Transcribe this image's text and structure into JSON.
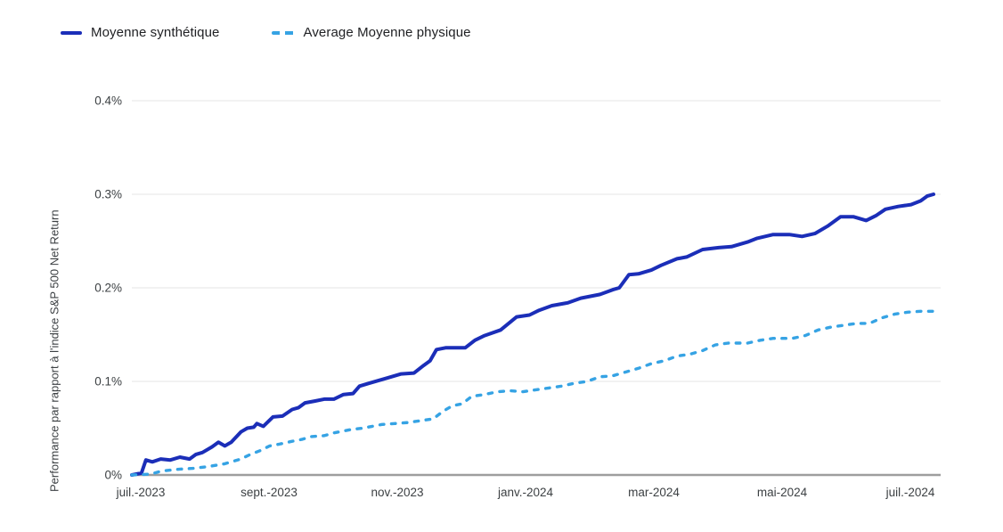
{
  "chart_data": {
    "type": "line",
    "title": "",
    "legend_position": "top-left",
    "grid": "horizontal",
    "colors": {
      "background": "#ffffff",
      "gridline": "#ebebeb",
      "axis_line": "#9e9e9e",
      "tick_text": "#3c4043",
      "legend_text": "#202124"
    },
    "x_axis": {
      "domain_months": [
        0,
        12.5
      ],
      "tick_positions_months": [
        0,
        2,
        4,
        6,
        8,
        10,
        12
      ],
      "tick_labels": [
        "juil.-2023",
        "sept.-2023",
        "nov.-2023",
        "janv.-2024",
        "mar-2024",
        "mai-2024",
        "juil.-2024"
      ]
    },
    "y_axis": {
      "label": "Performance par rapport à l'indice S&P 500 Net Return",
      "unit": "%",
      "range": [
        0,
        0.4
      ],
      "tick_values": [
        0,
        0.1,
        0.2,
        0.3,
        0.4
      ],
      "tick_labels": [
        "0%",
        "0.1%",
        "0.2%",
        "0.3%",
        "0.4%"
      ]
    },
    "series": [
      {
        "name": "Moyenne synthétique",
        "color": "#1b2eb8",
        "style": "solid",
        "points": [
          [
            0,
            0
          ],
          [
            0.15,
            0.002
          ],
          [
            0.22,
            0.016
          ],
          [
            0.32,
            0.014
          ],
          [
            0.45,
            0.017
          ],
          [
            0.6,
            0.016
          ],
          [
            0.75,
            0.019
          ],
          [
            0.9,
            0.017
          ],
          [
            1.0,
            0.022
          ],
          [
            1.1,
            0.024
          ],
          [
            1.25,
            0.03
          ],
          [
            1.35,
            0.035
          ],
          [
            1.45,
            0.031
          ],
          [
            1.55,
            0.035
          ],
          [
            1.7,
            0.046
          ],
          [
            1.8,
            0.05
          ],
          [
            1.9,
            0.051
          ],
          [
            1.95,
            0.055
          ],
          [
            2.05,
            0.052
          ],
          [
            2.2,
            0.062
          ],
          [
            2.35,
            0.063
          ],
          [
            2.5,
            0.07
          ],
          [
            2.6,
            0.072
          ],
          [
            2.7,
            0.077
          ],
          [
            2.85,
            0.079
          ],
          [
            3.0,
            0.081
          ],
          [
            3.15,
            0.081
          ],
          [
            3.3,
            0.086
          ],
          [
            3.45,
            0.087
          ],
          [
            3.55,
            0.095
          ],
          [
            3.7,
            0.098
          ],
          [
            3.85,
            0.101
          ],
          [
            4.0,
            0.104
          ],
          [
            4.2,
            0.108
          ],
          [
            4.4,
            0.109
          ],
          [
            4.55,
            0.117
          ],
          [
            4.65,
            0.122
          ],
          [
            4.75,
            0.134
          ],
          [
            4.9,
            0.136
          ],
          [
            5.2,
            0.136
          ],
          [
            5.35,
            0.144
          ],
          [
            5.5,
            0.149
          ],
          [
            5.75,
            0.155
          ],
          [
            6.0,
            0.169
          ],
          [
            6.2,
            0.171
          ],
          [
            6.35,
            0.176
          ],
          [
            6.55,
            0.181
          ],
          [
            6.8,
            0.184
          ],
          [
            7.0,
            0.189
          ],
          [
            7.3,
            0.193
          ],
          [
            7.5,
            0.198
          ],
          [
            7.6,
            0.2
          ],
          [
            7.75,
            0.214
          ],
          [
            7.9,
            0.215
          ],
          [
            8.1,
            0.219
          ],
          [
            8.25,
            0.224
          ],
          [
            8.5,
            0.231
          ],
          [
            8.65,
            0.233
          ],
          [
            8.9,
            0.241
          ],
          [
            9.15,
            0.243
          ],
          [
            9.35,
            0.244
          ],
          [
            9.6,
            0.249
          ],
          [
            9.75,
            0.253
          ],
          [
            10.0,
            0.257
          ],
          [
            10.25,
            0.257
          ],
          [
            10.45,
            0.255
          ],
          [
            10.65,
            0.258
          ],
          [
            10.85,
            0.266
          ],
          [
            11.05,
            0.276
          ],
          [
            11.25,
            0.276
          ],
          [
            11.45,
            0.272
          ],
          [
            11.6,
            0.277
          ],
          [
            11.75,
            0.284
          ],
          [
            11.95,
            0.287
          ],
          [
            12.15,
            0.289
          ],
          [
            12.3,
            0.293
          ],
          [
            12.4,
            0.298
          ],
          [
            12.5,
            0.3
          ]
        ]
      },
      {
        "name": "Average Moyenne physique",
        "color": "#36a3e4",
        "style": "dashed",
        "points": [
          [
            0,
            0
          ],
          [
            0.3,
            0.001
          ],
          [
            0.45,
            0.004
          ],
          [
            0.7,
            0.006
          ],
          [
            0.95,
            0.007
          ],
          [
            1.2,
            0.009
          ],
          [
            1.45,
            0.012
          ],
          [
            1.55,
            0.014
          ],
          [
            1.7,
            0.017
          ],
          [
            1.85,
            0.022
          ],
          [
            2.0,
            0.026
          ],
          [
            2.15,
            0.031
          ],
          [
            2.3,
            0.033
          ],
          [
            2.5,
            0.036
          ],
          [
            2.65,
            0.038
          ],
          [
            2.8,
            0.041
          ],
          [
            3.0,
            0.042
          ],
          [
            3.15,
            0.045
          ],
          [
            3.3,
            0.047
          ],
          [
            3.45,
            0.049
          ],
          [
            3.6,
            0.05
          ],
          [
            3.75,
            0.052
          ],
          [
            3.9,
            0.054
          ],
          [
            4.1,
            0.055
          ],
          [
            4.3,
            0.056
          ],
          [
            4.5,
            0.058
          ],
          [
            4.7,
            0.06
          ],
          [
            4.85,
            0.068
          ],
          [
            5.0,
            0.074
          ],
          [
            5.15,
            0.076
          ],
          [
            5.3,
            0.084
          ],
          [
            5.5,
            0.086
          ],
          [
            5.7,
            0.089
          ],
          [
            5.9,
            0.09
          ],
          [
            6.1,
            0.089
          ],
          [
            6.3,
            0.091
          ],
          [
            6.5,
            0.093
          ],
          [
            6.7,
            0.095
          ],
          [
            6.9,
            0.098
          ],
          [
            7.1,
            0.1
          ],
          [
            7.3,
            0.105
          ],
          [
            7.5,
            0.106
          ],
          [
            7.7,
            0.11
          ],
          [
            7.9,
            0.114
          ],
          [
            8.1,
            0.119
          ],
          [
            8.3,
            0.122
          ],
          [
            8.5,
            0.127
          ],
          [
            8.7,
            0.129
          ],
          [
            8.9,
            0.133
          ],
          [
            9.1,
            0.139
          ],
          [
            9.3,
            0.141
          ],
          [
            9.6,
            0.141
          ],
          [
            9.8,
            0.144
          ],
          [
            10.0,
            0.146
          ],
          [
            10.3,
            0.146
          ],
          [
            10.5,
            0.149
          ],
          [
            10.7,
            0.155
          ],
          [
            10.9,
            0.158
          ],
          [
            11.1,
            0.16
          ],
          [
            11.3,
            0.162
          ],
          [
            11.5,
            0.162
          ],
          [
            11.7,
            0.168
          ],
          [
            11.9,
            0.172
          ],
          [
            12.1,
            0.174
          ],
          [
            12.3,
            0.175
          ],
          [
            12.5,
            0.175
          ]
        ]
      }
    ]
  }
}
